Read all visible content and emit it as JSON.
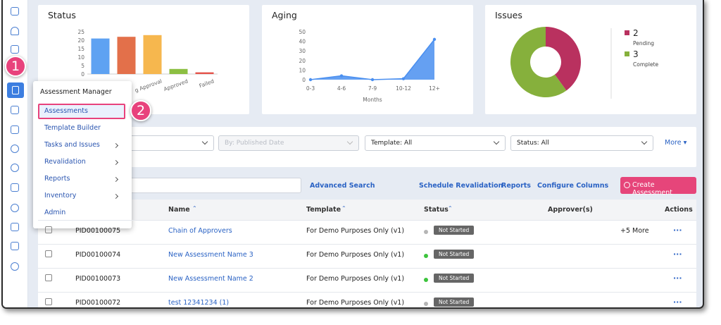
{
  "sidebar": {
    "callout": "1"
  },
  "menu": {
    "title": "Assessment Manager",
    "items": [
      "Assessments",
      "Template Builder",
      "Tasks and Issues",
      "Revalidation",
      "Reports",
      "Inventory",
      "Admin"
    ],
    "callout": "2"
  },
  "chart_data": [
    {
      "type": "bar",
      "title": "Status",
      "categories": [
        null,
        null,
        "g Approval",
        "Approved",
        "Failed"
      ],
      "values": [
        21,
        22,
        23,
        3,
        1
      ],
      "colors": [
        "#5ea2f2",
        "#e3704a",
        "#f6b74e",
        "#8cbf42",
        "#e5534b"
      ],
      "ylim": [
        0,
        25
      ],
      "yticks": [
        0,
        5,
        10,
        15,
        20,
        25
      ]
    },
    {
      "type": "line",
      "title": "Aging",
      "categories": [
        "0-3",
        "4-6",
        "7-9",
        "10-12",
        "12+"
      ],
      "values": [
        0,
        4,
        0,
        1,
        42
      ],
      "color": "#4a8ff0",
      "ylim": [
        0,
        50
      ],
      "yticks": [
        0,
        10,
        20,
        30,
        40,
        50
      ],
      "x_label": "Months"
    },
    {
      "type": "pie",
      "title": "Issues",
      "categories": [
        "Pending",
        "Complete"
      ],
      "values": [
        2,
        3
      ],
      "colors": [
        "#b9315f",
        "#86b03c"
      ]
    }
  ],
  "filters": {
    "date": "By: Published Date",
    "template": "Template: All",
    "status": "Status: All",
    "more": "More"
  },
  "toolbar": {
    "links": [
      "Advanced Search",
      "Schedule Revalidation",
      "Reports",
      "Configure Columns"
    ],
    "button": "Create Assessment"
  },
  "table": {
    "columns": [
      "Name",
      "Template",
      "Status",
      "Approver(s)",
      "Actions"
    ],
    "rows": [
      {
        "id": "PID00100075",
        "name": "Chain of Approvers",
        "template": "For Demo Purposes Only (v1)",
        "status": "Not Started",
        "status_color": "#b5b5b5",
        "approvers": "+5 More",
        "actions": "···"
      },
      {
        "id": "PID00100074",
        "name": "New Assessment Name 3",
        "template": "For Demo Purposes Only (v1)",
        "status": "Not Started",
        "status_color": "#3cc43c",
        "actions": "···"
      },
      {
        "id": "PID00100073",
        "name": "New Assessment Name 2",
        "template": "For Demo Purposes Only (v1)",
        "status": "Not Started",
        "status_color": "#3cc43c",
        "actions": "···"
      },
      {
        "id": "PID00100072",
        "name": "test 12341234 (1)",
        "template": "For Demo Purposes Only (v1)",
        "status": "Not Started",
        "status_color": "#b5b5b5",
        "actions": "···"
      }
    ]
  }
}
